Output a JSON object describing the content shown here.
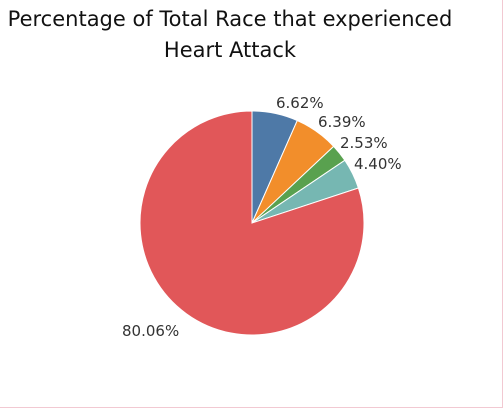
{
  "chart_data": {
    "type": "pie",
    "title_lines": [
      "Percentage of Total Race that experienced",
      "Heart Attack"
    ],
    "slices": [
      {
        "value": 6.62,
        "label": "6.62%",
        "color": "#4e79a7"
      },
      {
        "value": 6.39,
        "label": "6.39%",
        "color": "#f28e2b"
      },
      {
        "value": 2.53,
        "label": "2.53%",
        "color": "#59a14f"
      },
      {
        "value": 4.4,
        "label": "4.40%",
        "color": "#76b7b2"
      },
      {
        "value": 80.06,
        "label": "80.06%",
        "color": "#e15759"
      }
    ],
    "legend": "none"
  }
}
